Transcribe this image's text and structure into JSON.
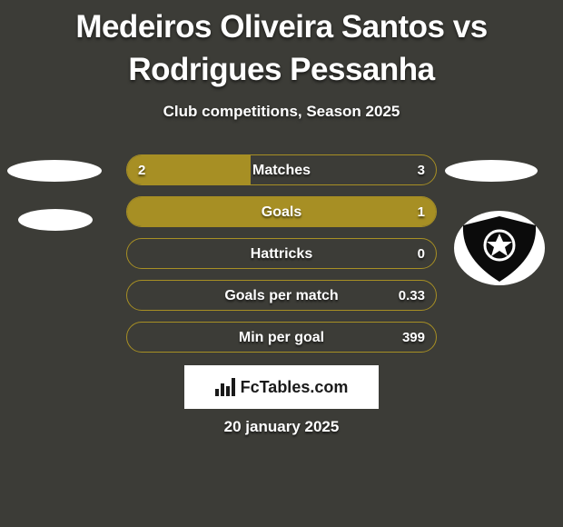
{
  "title": "Medeiros Oliveira Santos vs Rodrigues Pessanha",
  "subtitle": "Club competitions, Season 2025",
  "date": "20 january 2025",
  "brand": "FcTables.com",
  "colors": {
    "background": "#3c3c37",
    "bar_border": "#a78f24",
    "bar_fill": "#a78f24",
    "text": "#ffffff"
  },
  "bars": [
    {
      "label": "Matches",
      "left": "2",
      "right": "3",
      "left_pct": 40,
      "right_pct": 0
    },
    {
      "label": "Goals",
      "left": "",
      "right": "1",
      "left_pct": 0,
      "right_pct": 100
    },
    {
      "label": "Hattricks",
      "left": "",
      "right": "0",
      "left_pct": 0,
      "right_pct": 0
    },
    {
      "label": "Goals per match",
      "left": "",
      "right": "0.33",
      "left_pct": 0,
      "right_pct": 0
    },
    {
      "label": "Min per goal",
      "left": "",
      "right": "399",
      "left_pct": 0,
      "right_pct": 0
    }
  ]
}
